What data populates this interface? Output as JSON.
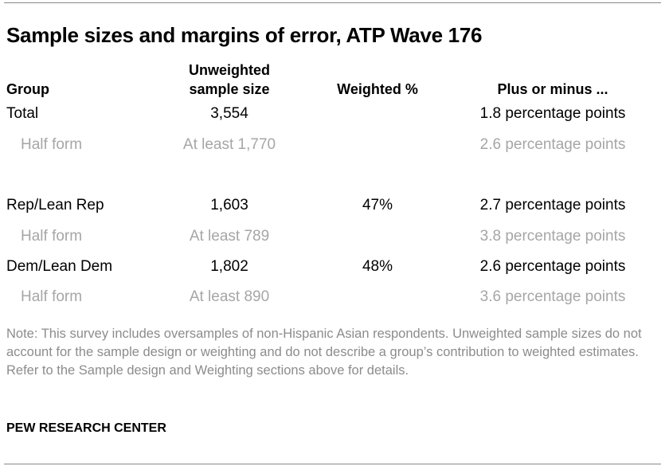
{
  "chart_data": {
    "type": "table",
    "title": "Sample sizes and margins of error, ATP Wave 176",
    "columns": [
      "Group",
      "Unweighted sample size",
      "Weighted %",
      "Plus or minus ..."
    ],
    "header": {
      "group": "Group",
      "unweighted_1": "Unweighted",
      "unweighted_2": "sample size",
      "weighted": "Weighted %",
      "moe": "Plus or minus ..."
    },
    "rows": [
      {
        "group": "Total",
        "n": "3,554",
        "weighted": "",
        "moe": "1.8 percentage points",
        "sub": false
      },
      {
        "group": "Half form",
        "n": "At least 1,770",
        "weighted": "",
        "moe": "2.6 percentage points",
        "sub": true
      },
      {
        "group": "Rep/Lean Rep",
        "n": "1,603",
        "weighted": "47%",
        "moe": "2.7 percentage points",
        "sub": false
      },
      {
        "group": "Half form",
        "n": "At least 789",
        "weighted": "",
        "moe": "3.8 percentage points",
        "sub": true
      },
      {
        "group": "Dem/Lean Dem",
        "n": "1,802",
        "weighted": "48%",
        "moe": "2.6 percentage points",
        "sub": false
      },
      {
        "group": "Half form",
        "n": "At least 890",
        "weighted": "",
        "moe": "3.6 percentage points",
        "sub": true
      }
    ],
    "note": "Note: This survey includes oversamples of non-Hispanic Asian respondents. Unweighted sample sizes do not account for the sample design or weighting and do not describe a group’s contribution to weighted estimates. Refer to the Sample design and Weighting sections above for details.",
    "source": "PEW RESEARCH CENTER"
  }
}
